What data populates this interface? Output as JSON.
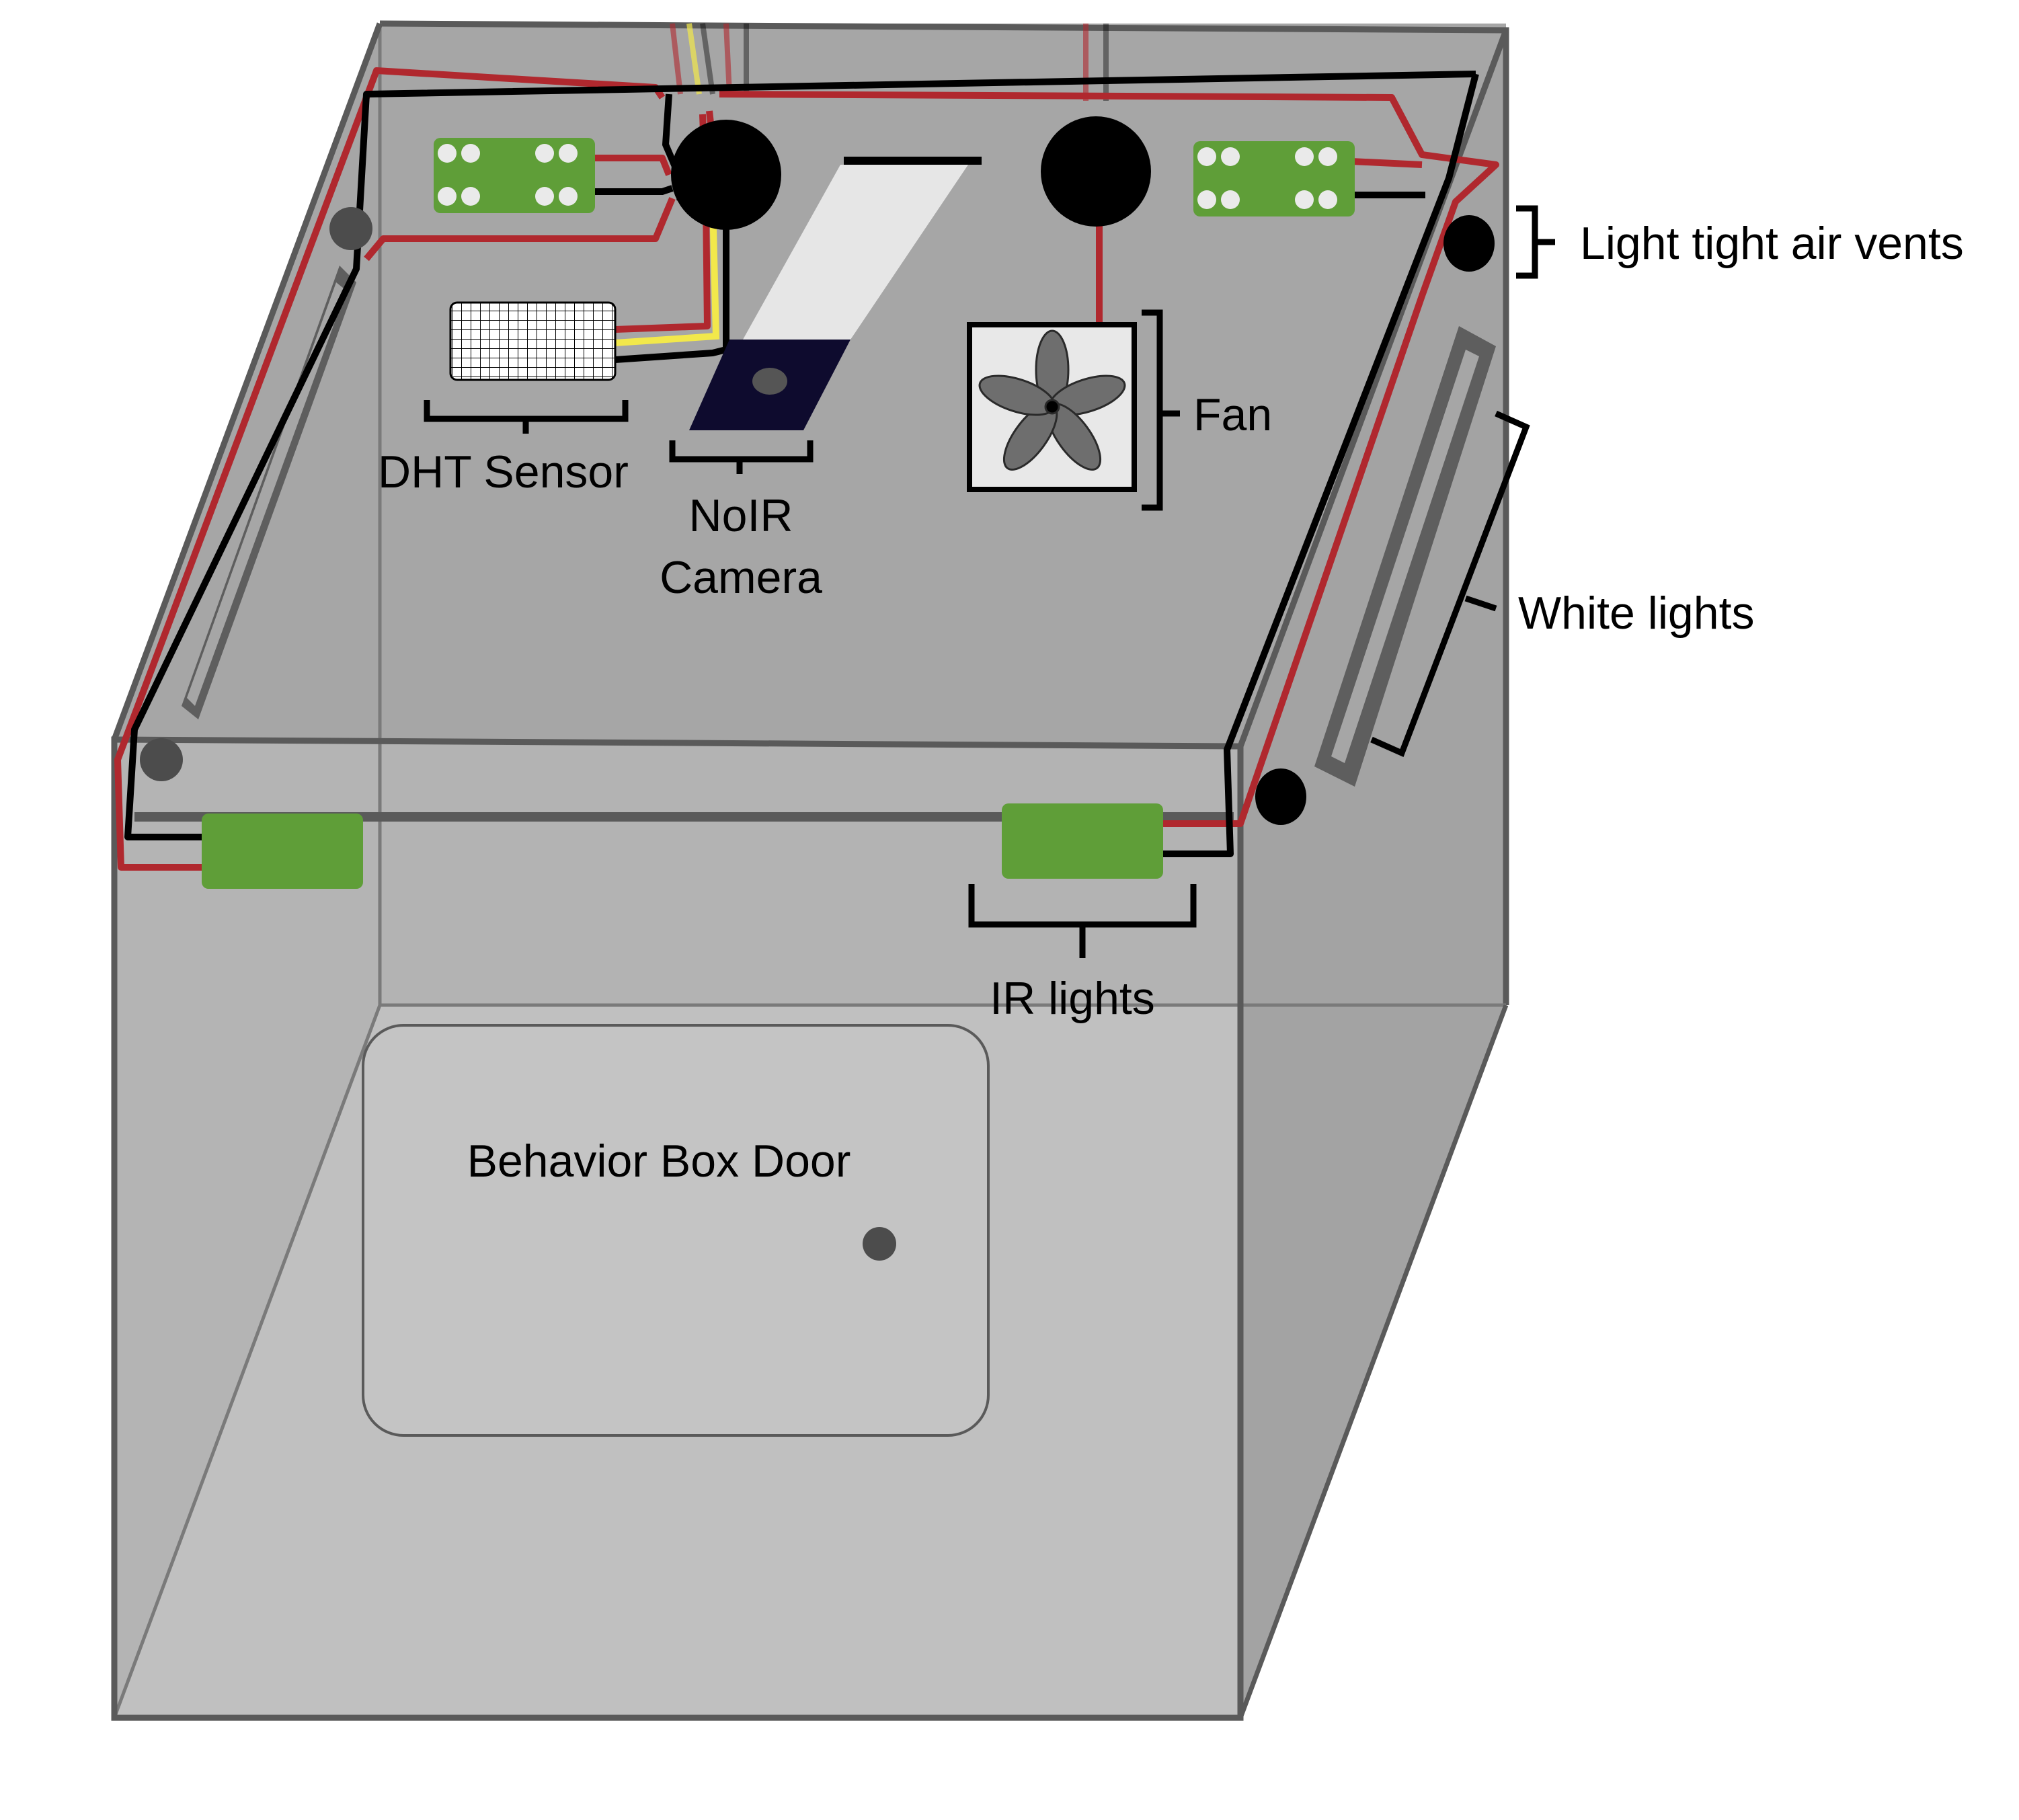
{
  "labels": {
    "air_vents": "Light tight air vents",
    "fan": "Fan",
    "white_lights": "White lights",
    "dht_sensor": "DHT Sensor",
    "camera_line1": "NoIR",
    "camera_line2": "Camera",
    "ir_lights": "IR lights",
    "door": "Behavior Box Door"
  },
  "colors": {
    "box_fill": "#a6a6a6",
    "box_front": "#b5b5b5",
    "door_fill": "#c4c4c4",
    "edge": "#5a5a5a",
    "wire_red": "#b0282e",
    "wire_black": "#000000",
    "wire_yellow": "#f2e84b",
    "board_green": "#5f9e38",
    "camera_dark": "#0e0b2e",
    "camera_ribbon": "#e6e6e6",
    "fan_frame": "#e8e8e8",
    "fan_blade": "#6e6e6e"
  }
}
